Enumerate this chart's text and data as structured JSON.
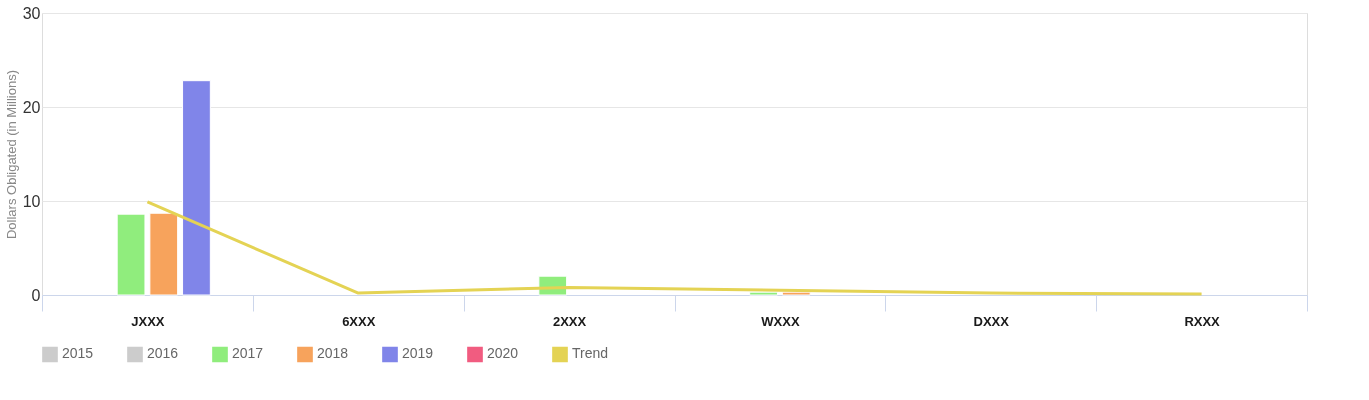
{
  "chart_data": {
    "type": "bar",
    "ylabel": "Dollars Obligated (in Millions)",
    "categories": [
      "JXXX",
      "6XXX",
      "2XXX",
      "WXXX",
      "DXXX",
      "RXXX"
    ],
    "ylim": [
      0,
      30
    ],
    "yticks": [
      0,
      10,
      20,
      30
    ],
    "grid": "y",
    "legend": "bottom",
    "series": [
      {
        "name": "2015",
        "color": "#cccccc",
        "values": [
          null,
          null,
          null,
          null,
          null,
          null
        ]
      },
      {
        "name": "2016",
        "color": "#cccccc",
        "values": [
          null,
          null,
          null,
          null,
          null,
          null
        ]
      },
      {
        "name": "2017",
        "color": "#90ed7d",
        "values": [
          8.6,
          null,
          2.0,
          0.3,
          null,
          null
        ]
      },
      {
        "name": "2018",
        "color": "#f7a35c",
        "values": [
          8.7,
          null,
          null,
          0.3,
          null,
          null
        ]
      },
      {
        "name": "2019",
        "color": "#8085e9",
        "values": [
          22.8,
          null,
          null,
          null,
          null,
          null
        ]
      },
      {
        "name": "2020",
        "color": "#f15c80",
        "values": [
          null,
          null,
          null,
          null,
          null,
          null
        ]
      },
      {
        "name": "Trend",
        "type": "line",
        "line_style": "solid",
        "color": "#e4d354",
        "values": [
          9.9,
          0.2,
          0.8,
          0.5,
          0.2,
          0.1
        ]
      }
    ]
  }
}
